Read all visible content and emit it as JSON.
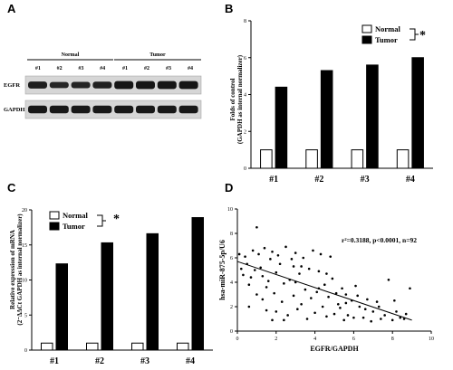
{
  "panels": {
    "A": {
      "letter": "A",
      "groups": [
        {
          "name": "Normal",
          "samples": [
            "#1",
            "#2",
            "#3",
            "#4"
          ]
        },
        {
          "name": "Tumor",
          "samples": [
            "#1",
            "#2",
            "#3",
            "#4"
          ]
        }
      ],
      "bands": [
        {
          "label": "EGFR",
          "intensity": [
            0.75,
            0.55,
            0.6,
            0.7,
            0.95,
            0.95,
            0.95,
            0.95
          ]
        },
        {
          "label": "GAPDH",
          "intensity": [
            0.9,
            0.9,
            0.9,
            0.9,
            0.9,
            0.9,
            0.9,
            0.9
          ]
        }
      ]
    },
    "B": {
      "letter": "B",
      "significance": "*",
      "ylabel_line1": "Folds of control",
      "ylabel_line2": "(GAPDH as internal normalizer)"
    },
    "C": {
      "letter": "C",
      "significance": "*",
      "ylabel_line1": "Relative expression of mRNA",
      "ylabel_line2": "(2⁻ΔΔCt GAPDH as internal normalizer)"
    },
    "D": {
      "letter": "D",
      "annotation": "r²=0.3188,  p<0.0001, n=92"
    }
  },
  "chart_data": [
    {
      "type": "bar",
      "panel": "B",
      "categories": [
        "#1",
        "#2",
        "#3",
        "#4"
      ],
      "series": [
        {
          "name": "Normal",
          "values": [
            1,
            1,
            1,
            1
          ],
          "color": "#ffffff"
        },
        {
          "name": "Tumor",
          "values": [
            4.4,
            5.3,
            5.6,
            6.0
          ],
          "color": "#000000"
        }
      ],
      "ylim": [
        0,
        8
      ],
      "yticks": [
        0,
        2,
        4,
        6,
        8
      ],
      "legend": "top-right"
    },
    {
      "type": "bar",
      "panel": "C",
      "categories": [
        "#1",
        "#2",
        "#3",
        "#4"
      ],
      "series": [
        {
          "name": "Normal",
          "values": [
            1,
            1,
            1,
            1
          ],
          "color": "#ffffff"
        },
        {
          "name": "Tumor",
          "values": [
            12.3,
            15.3,
            16.6,
            18.9
          ],
          "color": "#000000"
        }
      ],
      "ylim": [
        0,
        20
      ],
      "yticks": [
        0,
        5,
        10,
        15,
        20
      ],
      "legend": "top-left"
    },
    {
      "type": "scatter",
      "panel": "D",
      "xlabel": "EGFR/GAPDH",
      "ylabel": "hsa-miR-875-5p/U6",
      "xlim": [
        0,
        10
      ],
      "ylim": [
        0,
        10
      ],
      "xticks": [
        0,
        2,
        4,
        6,
        8,
        10
      ],
      "yticks": [
        0,
        2,
        4,
        6,
        8,
        10
      ],
      "fit_line": {
        "x": [
          0,
          9
        ],
        "y": [
          5.7,
          0.9
        ]
      },
      "points": [
        [
          0.1,
          6.3
        ],
        [
          0.2,
          5.1
        ],
        [
          0.3,
          4.6
        ],
        [
          0.4,
          6.1
        ],
        [
          0.5,
          5.5
        ],
        [
          0.6,
          3.8
        ],
        [
          0.7,
          4.4
        ],
        [
          0.8,
          6.6
        ],
        [
          0.9,
          5.0
        ],
        [
          1.0,
          8.5
        ],
        [
          1.0,
          3.0
        ],
        [
          1.1,
          6.3
        ],
        [
          1.2,
          5.2
        ],
        [
          1.3,
          4.5
        ],
        [
          1.4,
          6.8
        ],
        [
          1.5,
          3.6
        ],
        [
          1.5,
          1.7
        ],
        [
          1.6,
          4.1
        ],
        [
          1.7,
          5.9
        ],
        [
          1.8,
          6.5
        ],
        [
          1.9,
          3.1
        ],
        [
          2.0,
          1.6
        ],
        [
          2.0,
          4.8
        ],
        [
          2.1,
          6.2
        ],
        [
          2.2,
          5.5
        ],
        [
          2.3,
          2.4
        ],
        [
          2.4,
          3.9
        ],
        [
          2.5,
          6.9
        ],
        [
          2.6,
          1.3
        ],
        [
          2.7,
          4.2
        ],
        [
          2.8,
          5.9
        ],
        [
          2.9,
          2.9
        ],
        [
          3.0,
          6.4
        ],
        [
          3.1,
          1.8
        ],
        [
          3.2,
          4.7
        ],
        [
          3.3,
          2.2
        ],
        [
          3.4,
          6.0
        ],
        [
          3.5,
          3.4
        ],
        [
          3.6,
          1.0
        ],
        [
          3.7,
          5.1
        ],
        [
          3.8,
          2.7
        ],
        [
          3.9,
          6.6
        ],
        [
          4.0,
          1.5
        ],
        [
          4.1,
          3.2
        ],
        [
          4.2,
          4.9
        ],
        [
          4.3,
          6.3
        ],
        [
          4.4,
          2.0
        ],
        [
          4.5,
          3.8
        ],
        [
          4.6,
          1.2
        ],
        [
          4.7,
          2.8
        ],
        [
          4.8,
          6.1
        ],
        [
          4.9,
          4.3
        ],
        [
          5.0,
          1.4
        ],
        [
          5.1,
          3.1
        ],
        [
          5.2,
          2.2
        ],
        [
          5.3,
          1.9
        ],
        [
          5.4,
          3.5
        ],
        [
          5.5,
          0.9
        ],
        [
          5.6,
          2.3
        ],
        [
          5.7,
          1.3
        ],
        [
          5.9,
          2.5
        ],
        [
          6.0,
          1.1
        ],
        [
          6.1,
          3.7
        ],
        [
          6.3,
          2.0
        ],
        [
          6.5,
          1.1
        ],
        [
          6.7,
          2.6
        ],
        [
          6.9,
          0.8
        ],
        [
          7.0,
          1.6
        ],
        [
          7.2,
          2.4
        ],
        [
          7.4,
          1.0
        ],
        [
          7.6,
          1.3
        ],
        [
          7.8,
          4.2
        ],
        [
          8.0,
          0.9
        ],
        [
          8.1,
          2.5
        ],
        [
          8.2,
          1.6
        ],
        [
          8.4,
          1.1
        ],
        [
          8.6,
          1.0
        ],
        [
          8.7,
          1.4
        ],
        [
          8.9,
          3.5
        ],
        [
          1.3,
          2.6
        ],
        [
          2.4,
          0.9
        ],
        [
          3.0,
          4.0
        ],
        [
          3.3,
          5.3
        ],
        [
          4.2,
          3.5
        ],
        [
          5.6,
          3.0
        ],
        [
          6.6,
          1.8
        ],
        [
          7.3,
          2.0
        ],
        [
          0.6,
          2.0
        ],
        [
          1.8,
          0.9
        ],
        [
          2.9,
          5.3
        ],
        [
          4.6,
          4.7
        ],
        [
          6.2,
          2.9
        ]
      ]
    }
  ]
}
